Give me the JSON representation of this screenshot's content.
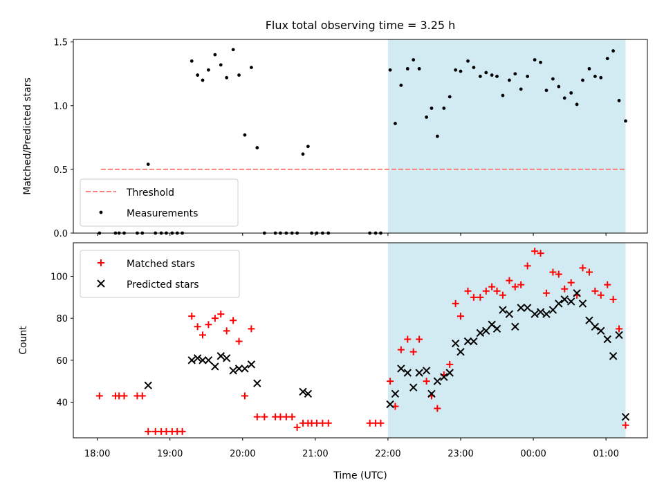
{
  "figure": {
    "title": "Flux total observing time = 3.25 h",
    "xlabel": "Time (UTC)",
    "x_ticks": [
      "18:00",
      "19:00",
      "20:00",
      "21:00",
      "22:00",
      "23:00",
      "00:00",
      "01:00"
    ]
  },
  "colors": {
    "threshold": "#ff7f7f",
    "measurements": "#000000",
    "matched": "#ff0000",
    "predicted": "#000000",
    "shade": "#add8e6"
  },
  "chart_data": [
    {
      "type": "scatter",
      "ylabel": "Matched/Predicted stars",
      "xlim": [
        17.67,
        25.57
      ],
      "ylim": [
        0,
        1.52
      ],
      "y_ticks": [
        0.0,
        0.5,
        1.0,
        1.5
      ],
      "x_unit": "hours since 18:00 (values > 24 are after midnight)",
      "shaded_span": [
        22.0,
        25.27
      ],
      "legend_position": "lower-left",
      "threshold": {
        "name": "Threshold",
        "value": 0.5,
        "x": [
          18.05,
          25.27
        ]
      },
      "series": [
        {
          "name": "Measurements",
          "points": [
            [
              18.03,
              0
            ],
            [
              18.25,
              0
            ],
            [
              18.3,
              0
            ],
            [
              18.37,
              0
            ],
            [
              18.55,
              0
            ],
            [
              18.62,
              0
            ],
            [
              18.7,
              0.54
            ],
            [
              18.8,
              0
            ],
            [
              18.88,
              0
            ],
            [
              18.95,
              0
            ],
            [
              19.03,
              0
            ],
            [
              19.1,
              0
            ],
            [
              19.17,
              0
            ],
            [
              19.3,
              1.35
            ],
            [
              19.38,
              1.24
            ],
            [
              19.45,
              1.2
            ],
            [
              19.53,
              1.28
            ],
            [
              19.62,
              1.4
            ],
            [
              19.7,
              1.32
            ],
            [
              19.78,
              1.22
            ],
            [
              19.87,
              1.44
            ],
            [
              19.95,
              1.24
            ],
            [
              20.03,
              0.77
            ],
            [
              20.12,
              1.3
            ],
            [
              20.2,
              0.67
            ],
            [
              20.3,
              0
            ],
            [
              20.45,
              0
            ],
            [
              20.52,
              0
            ],
            [
              20.6,
              0
            ],
            [
              20.68,
              0
            ],
            [
              20.75,
              0
            ],
            [
              20.83,
              0.62
            ],
            [
              20.9,
              0.68
            ],
            [
              20.95,
              0
            ],
            [
              21.02,
              0
            ],
            [
              21.1,
              0
            ],
            [
              21.18,
              0
            ],
            [
              21.75,
              0
            ],
            [
              21.83,
              0
            ],
            [
              21.9,
              0
            ],
            [
              22.03,
              1.28
            ],
            [
              22.1,
              0.86
            ],
            [
              22.18,
              1.16
            ],
            [
              22.27,
              1.29
            ],
            [
              22.35,
              1.36
            ],
            [
              22.43,
              1.29
            ],
            [
              22.53,
              0.91
            ],
            [
              22.6,
              0.98
            ],
            [
              22.68,
              0.76
            ],
            [
              22.77,
              0.98
            ],
            [
              22.85,
              1.07
            ],
            [
              22.93,
              1.28
            ],
            [
              23.0,
              1.27
            ],
            [
              23.1,
              1.35
            ],
            [
              23.18,
              1.3
            ],
            [
              23.27,
              1.23
            ],
            [
              23.35,
              1.26
            ],
            [
              23.43,
              1.24
            ],
            [
              23.5,
              1.23
            ],
            [
              23.58,
              1.08
            ],
            [
              23.67,
              1.2
            ],
            [
              23.75,
              1.25
            ],
            [
              23.83,
              1.13
            ],
            [
              23.92,
              1.23
            ],
            [
              24.02,
              1.36
            ],
            [
              24.1,
              1.34
            ],
            [
              24.18,
              1.12
            ],
            [
              24.27,
              1.21
            ],
            [
              24.35,
              1.15
            ],
            [
              24.43,
              1.06
            ],
            [
              24.52,
              1.1
            ],
            [
              24.6,
              1.01
            ],
            [
              24.68,
              1.2
            ],
            [
              24.77,
              1.29
            ],
            [
              24.85,
              1.23
            ],
            [
              24.93,
              1.22
            ],
            [
              25.02,
              1.37
            ],
            [
              25.1,
              1.43
            ],
            [
              25.18,
              1.04
            ],
            [
              25.27,
              0.88
            ]
          ]
        }
      ]
    },
    {
      "type": "scatter",
      "ylabel": "Count",
      "xlabel": "Time (UTC)",
      "xlim": [
        17.67,
        25.57
      ],
      "ylim": [
        23,
        116
      ],
      "y_ticks": [
        40,
        60,
        80,
        100
      ],
      "x_unit": "hours since 18:00 (values > 24 are after midnight)",
      "shaded_span": [
        22.0,
        25.27
      ],
      "legend_position": "upper-left",
      "series": [
        {
          "name": "Matched stars",
          "marker": "+",
          "points": [
            [
              18.03,
              43
            ],
            [
              18.25,
              43
            ],
            [
              18.3,
              43
            ],
            [
              18.37,
              43
            ],
            [
              18.55,
              43
            ],
            [
              18.62,
              43
            ],
            [
              18.7,
              26
            ],
            [
              18.8,
              26
            ],
            [
              18.88,
              26
            ],
            [
              18.95,
              26
            ],
            [
              19.03,
              26
            ],
            [
              19.1,
              26
            ],
            [
              19.17,
              26
            ],
            [
              19.3,
              81
            ],
            [
              19.38,
              76
            ],
            [
              19.45,
              72
            ],
            [
              19.53,
              77
            ],
            [
              19.62,
              80
            ],
            [
              19.7,
              82
            ],
            [
              19.78,
              74
            ],
            [
              19.87,
              79
            ],
            [
              19.95,
              69
            ],
            [
              20.03,
              43
            ],
            [
              20.12,
              75
            ],
            [
              20.2,
              33
            ],
            [
              20.3,
              33
            ],
            [
              20.45,
              33
            ],
            [
              20.52,
              33
            ],
            [
              20.6,
              33
            ],
            [
              20.68,
              33
            ],
            [
              20.75,
              28
            ],
            [
              20.83,
              30
            ],
            [
              20.9,
              30
            ],
            [
              20.95,
              30
            ],
            [
              21.02,
              30
            ],
            [
              21.1,
              30
            ],
            [
              21.18,
              30
            ],
            [
              21.75,
              30
            ],
            [
              21.83,
              30
            ],
            [
              21.9,
              30
            ],
            [
              22.03,
              50
            ],
            [
              22.1,
              38
            ],
            [
              22.18,
              65
            ],
            [
              22.27,
              70
            ],
            [
              22.35,
              64
            ],
            [
              22.43,
              70
            ],
            [
              22.53,
              50
            ],
            [
              22.6,
              43
            ],
            [
              22.68,
              37
            ],
            [
              22.77,
              53
            ],
            [
              22.85,
              58
            ],
            [
              22.93,
              87
            ],
            [
              23.0,
              81
            ],
            [
              23.1,
              93
            ],
            [
              23.18,
              90
            ],
            [
              23.27,
              90
            ],
            [
              23.35,
              93
            ],
            [
              23.43,
              95
            ],
            [
              23.5,
              93
            ],
            [
              23.58,
              91
            ],
            [
              23.67,
              98
            ],
            [
              23.75,
              95
            ],
            [
              23.83,
              96
            ],
            [
              23.92,
              105
            ],
            [
              24.02,
              112
            ],
            [
              24.1,
              111
            ],
            [
              24.18,
              92
            ],
            [
              24.27,
              102
            ],
            [
              24.35,
              101
            ],
            [
              24.43,
              94
            ],
            [
              24.52,
              97
            ],
            [
              24.6,
              91
            ],
            [
              24.68,
              104
            ],
            [
              24.77,
              102
            ],
            [
              24.85,
              93
            ],
            [
              24.93,
              91
            ],
            [
              25.02,
              96
            ],
            [
              25.1,
              89
            ],
            [
              25.18,
              75
            ],
            [
              25.27,
              29
            ]
          ]
        },
        {
          "name": "Predicted stars",
          "marker": "x",
          "points": [
            [
              18.7,
              48
            ],
            [
              19.3,
              60
            ],
            [
              19.38,
              61
            ],
            [
              19.45,
              60
            ],
            [
              19.53,
              60
            ],
            [
              19.62,
              57
            ],
            [
              19.7,
              62
            ],
            [
              19.78,
              61
            ],
            [
              19.87,
              55
            ],
            [
              19.95,
              56
            ],
            [
              20.03,
              56
            ],
            [
              20.12,
              58
            ],
            [
              20.2,
              49
            ],
            [
              20.83,
              45
            ],
            [
              20.9,
              44
            ],
            [
              22.03,
              39
            ],
            [
              22.1,
              44
            ],
            [
              22.18,
              56
            ],
            [
              22.27,
              54
            ],
            [
              22.35,
              47
            ],
            [
              22.43,
              54
            ],
            [
              22.53,
              55
            ],
            [
              22.6,
              44
            ],
            [
              22.68,
              50
            ],
            [
              22.77,
              52
            ],
            [
              22.85,
              54
            ],
            [
              22.93,
              68
            ],
            [
              23.0,
              64
            ],
            [
              23.1,
              69
            ],
            [
              23.18,
              69
            ],
            [
              23.27,
              73
            ],
            [
              23.35,
              74
            ],
            [
              23.43,
              77
            ],
            [
              23.5,
              75
            ],
            [
              23.58,
              84
            ],
            [
              23.67,
              82
            ],
            [
              23.75,
              76
            ],
            [
              23.83,
              85
            ],
            [
              23.92,
              85
            ],
            [
              24.02,
              82
            ],
            [
              24.1,
              83
            ],
            [
              24.18,
              82
            ],
            [
              24.27,
              84
            ],
            [
              24.35,
              87
            ],
            [
              24.43,
              89
            ],
            [
              24.52,
              88
            ],
            [
              24.6,
              92
            ],
            [
              24.68,
              87
            ],
            [
              24.77,
              79
            ],
            [
              24.85,
              76
            ],
            [
              24.93,
              74
            ],
            [
              25.02,
              70
            ],
            [
              25.1,
              62
            ],
            [
              25.18,
              72
            ],
            [
              25.27,
              33
            ]
          ]
        }
      ]
    }
  ]
}
